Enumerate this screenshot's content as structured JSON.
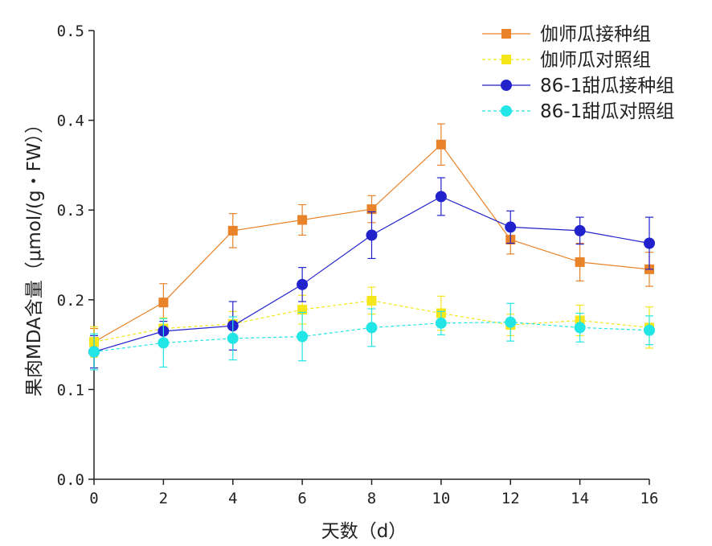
{
  "chart_data": {
    "type": "line",
    "title": "",
    "xlabel": "天数（d）",
    "ylabel": "果肉MDA含量（μmol/(g・FW））",
    "xlim": [
      0,
      16
    ],
    "ylim": [
      0.0,
      0.5
    ],
    "x_ticks": [
      "0",
      "2",
      "4",
      "6",
      "8",
      "10",
      "12",
      "14",
      "16"
    ],
    "y_ticks": [
      "0.0",
      "0.1",
      "0.2",
      "0.3",
      "0.4",
      "0.5"
    ],
    "x": [
      0,
      2,
      4,
      6,
      8,
      10,
      12,
      14,
      16
    ],
    "grid": false,
    "legend_position": "top-right",
    "series": [
      {
        "name": "伽师瓜接种组",
        "color": "#E8832A",
        "marker": "square",
        "line_style": "solid",
        "values": [
          0.153,
          0.197,
          0.277,
          0.289,
          0.301,
          0.373,
          0.267,
          0.242,
          0.234
        ],
        "errors": [
          0.015,
          0.021,
          0.019,
          0.017,
          0.015,
          0.023,
          0.016,
          0.021,
          0.019
        ]
      },
      {
        "name": "伽师瓜对照组",
        "color": "#F5E61A",
        "marker": "square",
        "line_style": "dashed",
        "values": [
          0.153,
          0.168,
          0.173,
          0.189,
          0.199,
          0.185,
          0.172,
          0.177,
          0.169
        ],
        "errors": [
          0.017,
          0.012,
          0.014,
          0.016,
          0.015,
          0.019,
          0.012,
          0.017,
          0.023
        ]
      },
      {
        "name": "86-1甜瓜接种组",
        "color": "#2222CC",
        "marker": "circle",
        "line_style": "solid",
        "values": [
          0.142,
          0.165,
          0.171,
          0.217,
          0.272,
          0.315,
          0.281,
          0.277,
          0.263
        ],
        "errors": [
          0.018,
          0.011,
          0.027,
          0.019,
          0.026,
          0.021,
          0.018,
          0.015,
          0.029
        ]
      },
      {
        "name": "86-1甜瓜对照组",
        "color": "#22E5E5",
        "marker": "circle",
        "line_style": "dashed",
        "values": [
          0.142,
          0.152,
          0.157,
          0.159,
          0.169,
          0.174,
          0.175,
          0.169,
          0.166
        ],
        "errors": [
          0.02,
          0.027,
          0.024,
          0.027,
          0.021,
          0.013,
          0.021,
          0.016,
          0.016
        ]
      }
    ]
  }
}
